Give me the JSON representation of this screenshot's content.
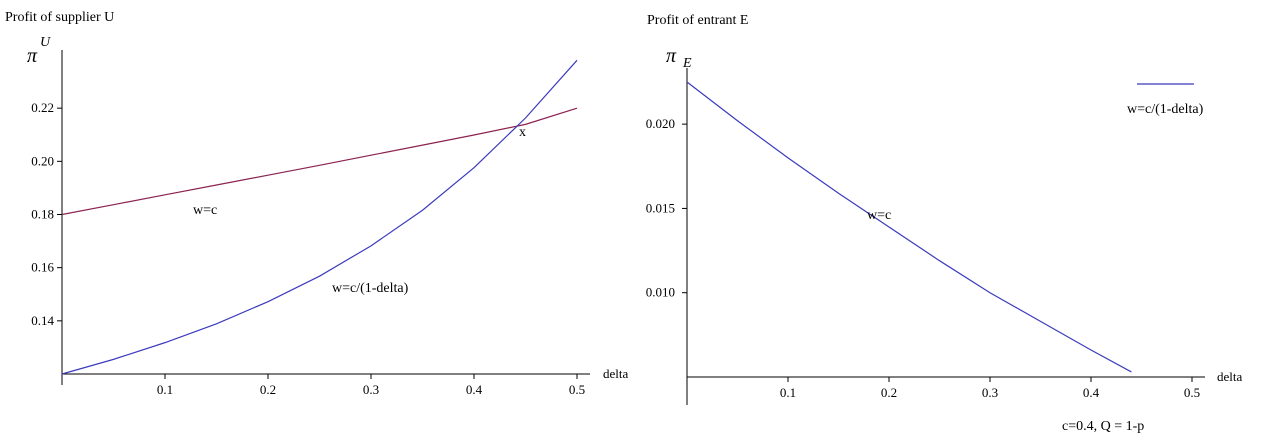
{
  "chart_data": [
    {
      "type": "line",
      "title": "Profit of supplier U",
      "ylabel_symbol": "π",
      "ylabel_superscript": "U",
      "xlabel": "delta",
      "xlim": [
        0,
        0.5
      ],
      "ylim": [
        0.12,
        0.24
      ],
      "xticks": [
        "0.1",
        "0.2",
        "0.3",
        "0.4",
        "0.5"
      ],
      "yticks": [
        "0.14",
        "0.16",
        "0.18",
        "0.20",
        "0.22"
      ],
      "series": [
        {
          "label": "w=c",
          "color": "#8b2252",
          "x": [
            0,
            0.05,
            0.1,
            0.15,
            0.2,
            0.25,
            0.3,
            0.35,
            0.4,
            0.45,
            0.5
          ],
          "y": [
            0.18,
            0.1837,
            0.1874,
            0.1911,
            0.1948,
            0.1985,
            0.2023,
            0.2061,
            0.2099,
            0.2139,
            0.22
          ]
        },
        {
          "label": "w=c/(1-delta)",
          "color": "#3b3bbd",
          "x": [
            0,
            0.05,
            0.1,
            0.15,
            0.2,
            0.25,
            0.3,
            0.35,
            0.4,
            0.45,
            0.5
          ],
          "y": [
            0.12,
            0.1255,
            0.1318,
            0.1389,
            0.1472,
            0.1568,
            0.1682,
            0.1816,
            0.1976,
            0.2163,
            0.238
          ]
        }
      ],
      "annotations": [
        {
          "text": "w=c",
          "x": 0.13,
          "y": 0.1825
        },
        {
          "text": "w=c/(1-delta)",
          "x": 0.26,
          "y": 0.157
        },
        {
          "text": "x",
          "x": 0.443,
          "y": 0.2115
        }
      ]
    },
    {
      "type": "line",
      "title": "Profit of entrant E",
      "ylabel_symbol": "π",
      "ylabel_subscript": "E",
      "xlabel": "delta",
      "xlim": [
        0,
        0.5
      ],
      "ylim": [
        0.005,
        0.0225
      ],
      "xticks": [
        "0.1",
        "0.2",
        "0.3",
        "0.4",
        "0.5"
      ],
      "yticks": [
        "0.010",
        "0.015",
        "0.020"
      ],
      "legend": {
        "label": "w=c/(1-delta)",
        "placement": "top-right"
      },
      "series": [
        {
          "label": "w=c/(1-delta)",
          "color": "#3b3bbd",
          "x": [
            0,
            0.05,
            0.1,
            0.15,
            0.2,
            0.25,
            0.3,
            0.35,
            0.4,
            0.44
          ],
          "y": [
            0.0225,
            0.0202,
            0.018,
            0.0159,
            0.0139,
            0.0119,
            0.01,
            0.0083,
            0.0066,
            0.0053
          ]
        }
      ],
      "annotations": [
        {
          "text": "w=c",
          "x": 0.17,
          "y": 0.0149
        }
      ],
      "footnote": "c=0.4, Q = 1-p"
    }
  ]
}
